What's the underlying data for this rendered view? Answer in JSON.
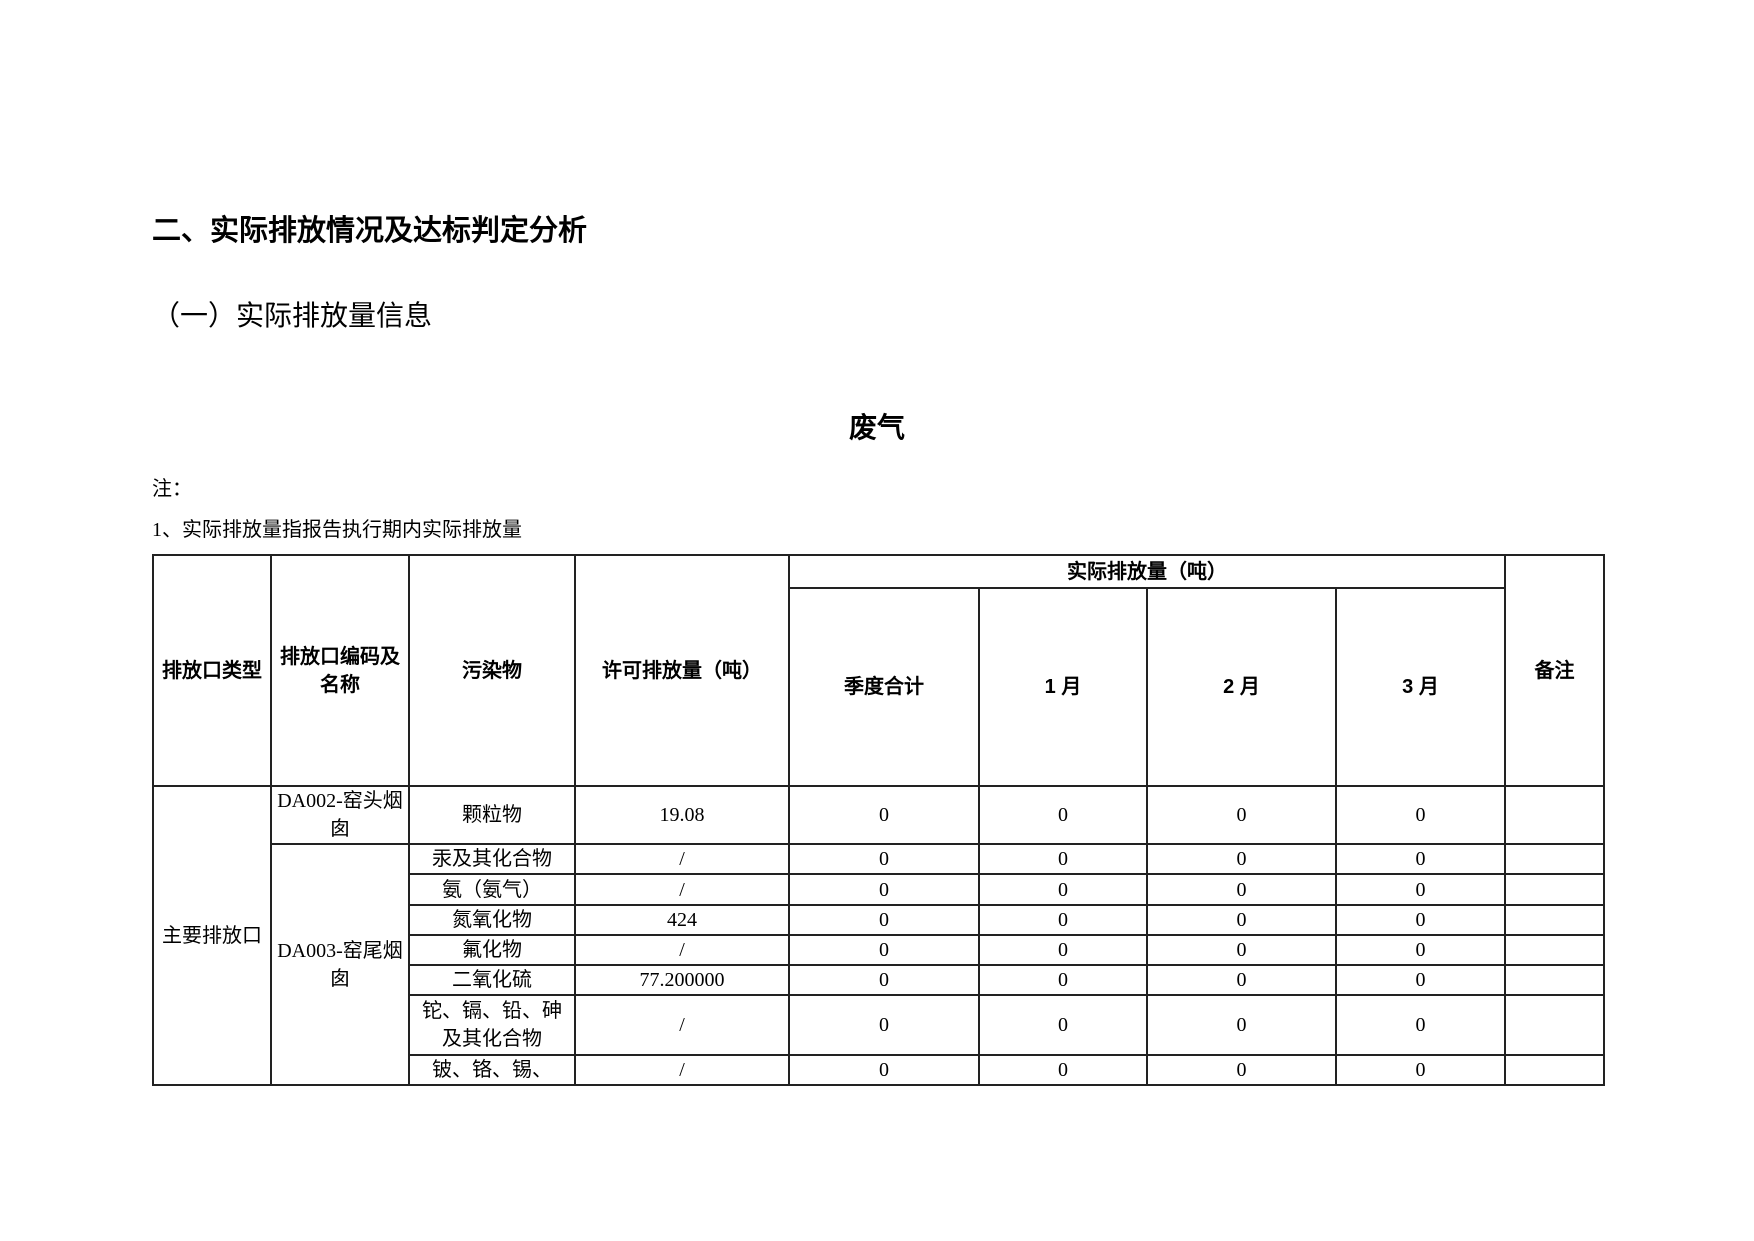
{
  "section_title": "二、实际排放情况及达标判定分析",
  "subsection_title": "（一）实际排放量信息",
  "table_title": "废气",
  "note_label": "注：",
  "note_1": "1、实际排放量指报告执行期内实际排放量",
  "table": {
    "headers": {
      "outlet_type": "排放口类型",
      "outlet_code": "排放口编码及名称",
      "pollutant": "污染物",
      "permitted": "许可排放量（吨）",
      "actual_group": "实际排放量（吨）",
      "quarter_total": "季度合计",
      "month1": "1 月",
      "month2": "2 月",
      "month3": "3 月",
      "remarks": "备注"
    },
    "outlet_type_value": "主要排放口",
    "outlets": [
      {
        "code": "DA002-窑头烟囱",
        "rows": [
          {
            "pollutant": "颗粒物",
            "permitted": "19.08",
            "quarter": "0",
            "m1": "0",
            "m2": "0",
            "m3": "0",
            "remark": ""
          }
        ]
      },
      {
        "code": "DA003-窑尾烟囱",
        "rows": [
          {
            "pollutant": "汞及其化合物",
            "permitted": "/",
            "quarter": "0",
            "m1": "0",
            "m2": "0",
            "m3": "0",
            "remark": ""
          },
          {
            "pollutant": "氨（氨气）",
            "permitted": "/",
            "quarter": "0",
            "m1": "0",
            "m2": "0",
            "m3": "0",
            "remark": ""
          },
          {
            "pollutant": "氮氧化物",
            "permitted": "424",
            "quarter": "0",
            "m1": "0",
            "m2": "0",
            "m3": "0",
            "remark": ""
          },
          {
            "pollutant": "氟化物",
            "permitted": "/",
            "quarter": "0",
            "m1": "0",
            "m2": "0",
            "m3": "0",
            "remark": ""
          },
          {
            "pollutant": "二氧化硫",
            "permitted": "77.200000",
            "quarter": "0",
            "m1": "0",
            "m2": "0",
            "m3": "0",
            "remark": ""
          },
          {
            "pollutant": "铊、镉、铅、砷及其化合物",
            "permitted": "/",
            "quarter": "0",
            "m1": "0",
            "m2": "0",
            "m3": "0",
            "remark": ""
          },
          {
            "pollutant": "铍、铬、锡、",
            "permitted": "/",
            "quarter": "0",
            "m1": "0",
            "m2": "0",
            "m3": "0",
            "remark": ""
          }
        ]
      }
    ]
  }
}
